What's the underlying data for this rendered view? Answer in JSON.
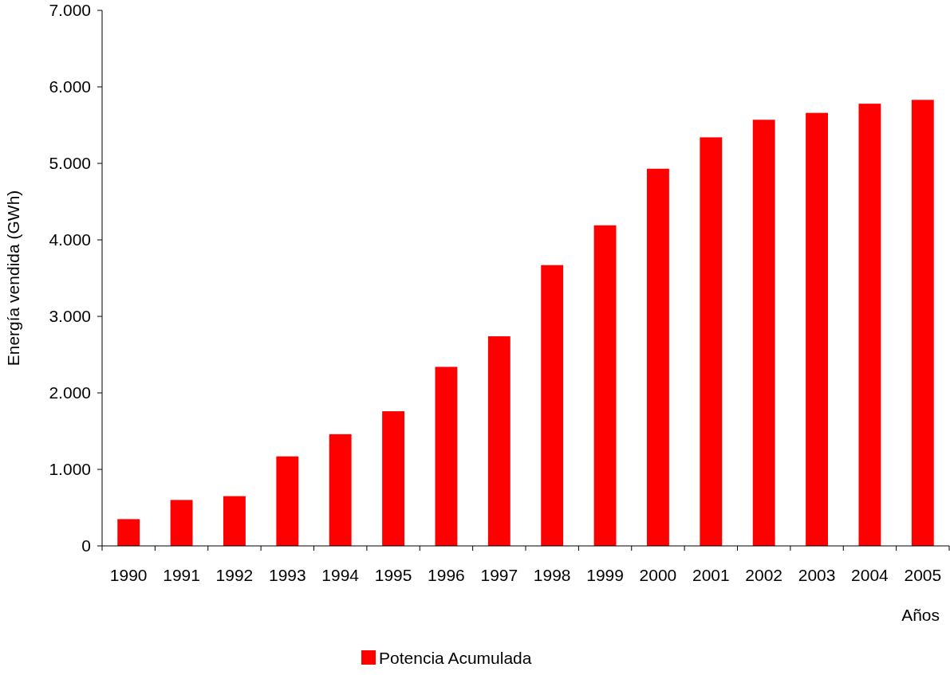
{
  "chart_data": {
    "type": "bar",
    "xlabel": "Años",
    "ylabel": "Energía vendida (GWh)",
    "categories": [
      "1990",
      "1991",
      "1992",
      "1993",
      "1994",
      "1995",
      "1996",
      "1997",
      "1998",
      "1999",
      "2000",
      "2001",
      "2002",
      "2003",
      "2004",
      "2005"
    ],
    "series": [
      {
        "name": "Potencia Acumulada",
        "color": "#ff0000",
        "values": [
          350,
          600,
          650,
          1170,
          1460,
          1760,
          2340,
          2740,
          3670,
          4190,
          4930,
          5340,
          5570,
          5660,
          5780,
          5830
        ]
      }
    ],
    "ylim": [
      0,
      7000
    ],
    "yticks": [
      0,
      {
        "value": 1000,
        "label": "1.000"
      },
      {
        "value": 2000,
        "label": "2.000"
      },
      {
        "value": 3000,
        "label": "3.000"
      },
      {
        "value": 4000,
        "label": "4.000"
      },
      {
        "value": 5000,
        "label": "5.000"
      },
      {
        "value": 6000,
        "label": "6.000"
      },
      {
        "value": 7000,
        "label": "7.000"
      }
    ],
    "grid": false,
    "legend": "bottom"
  }
}
